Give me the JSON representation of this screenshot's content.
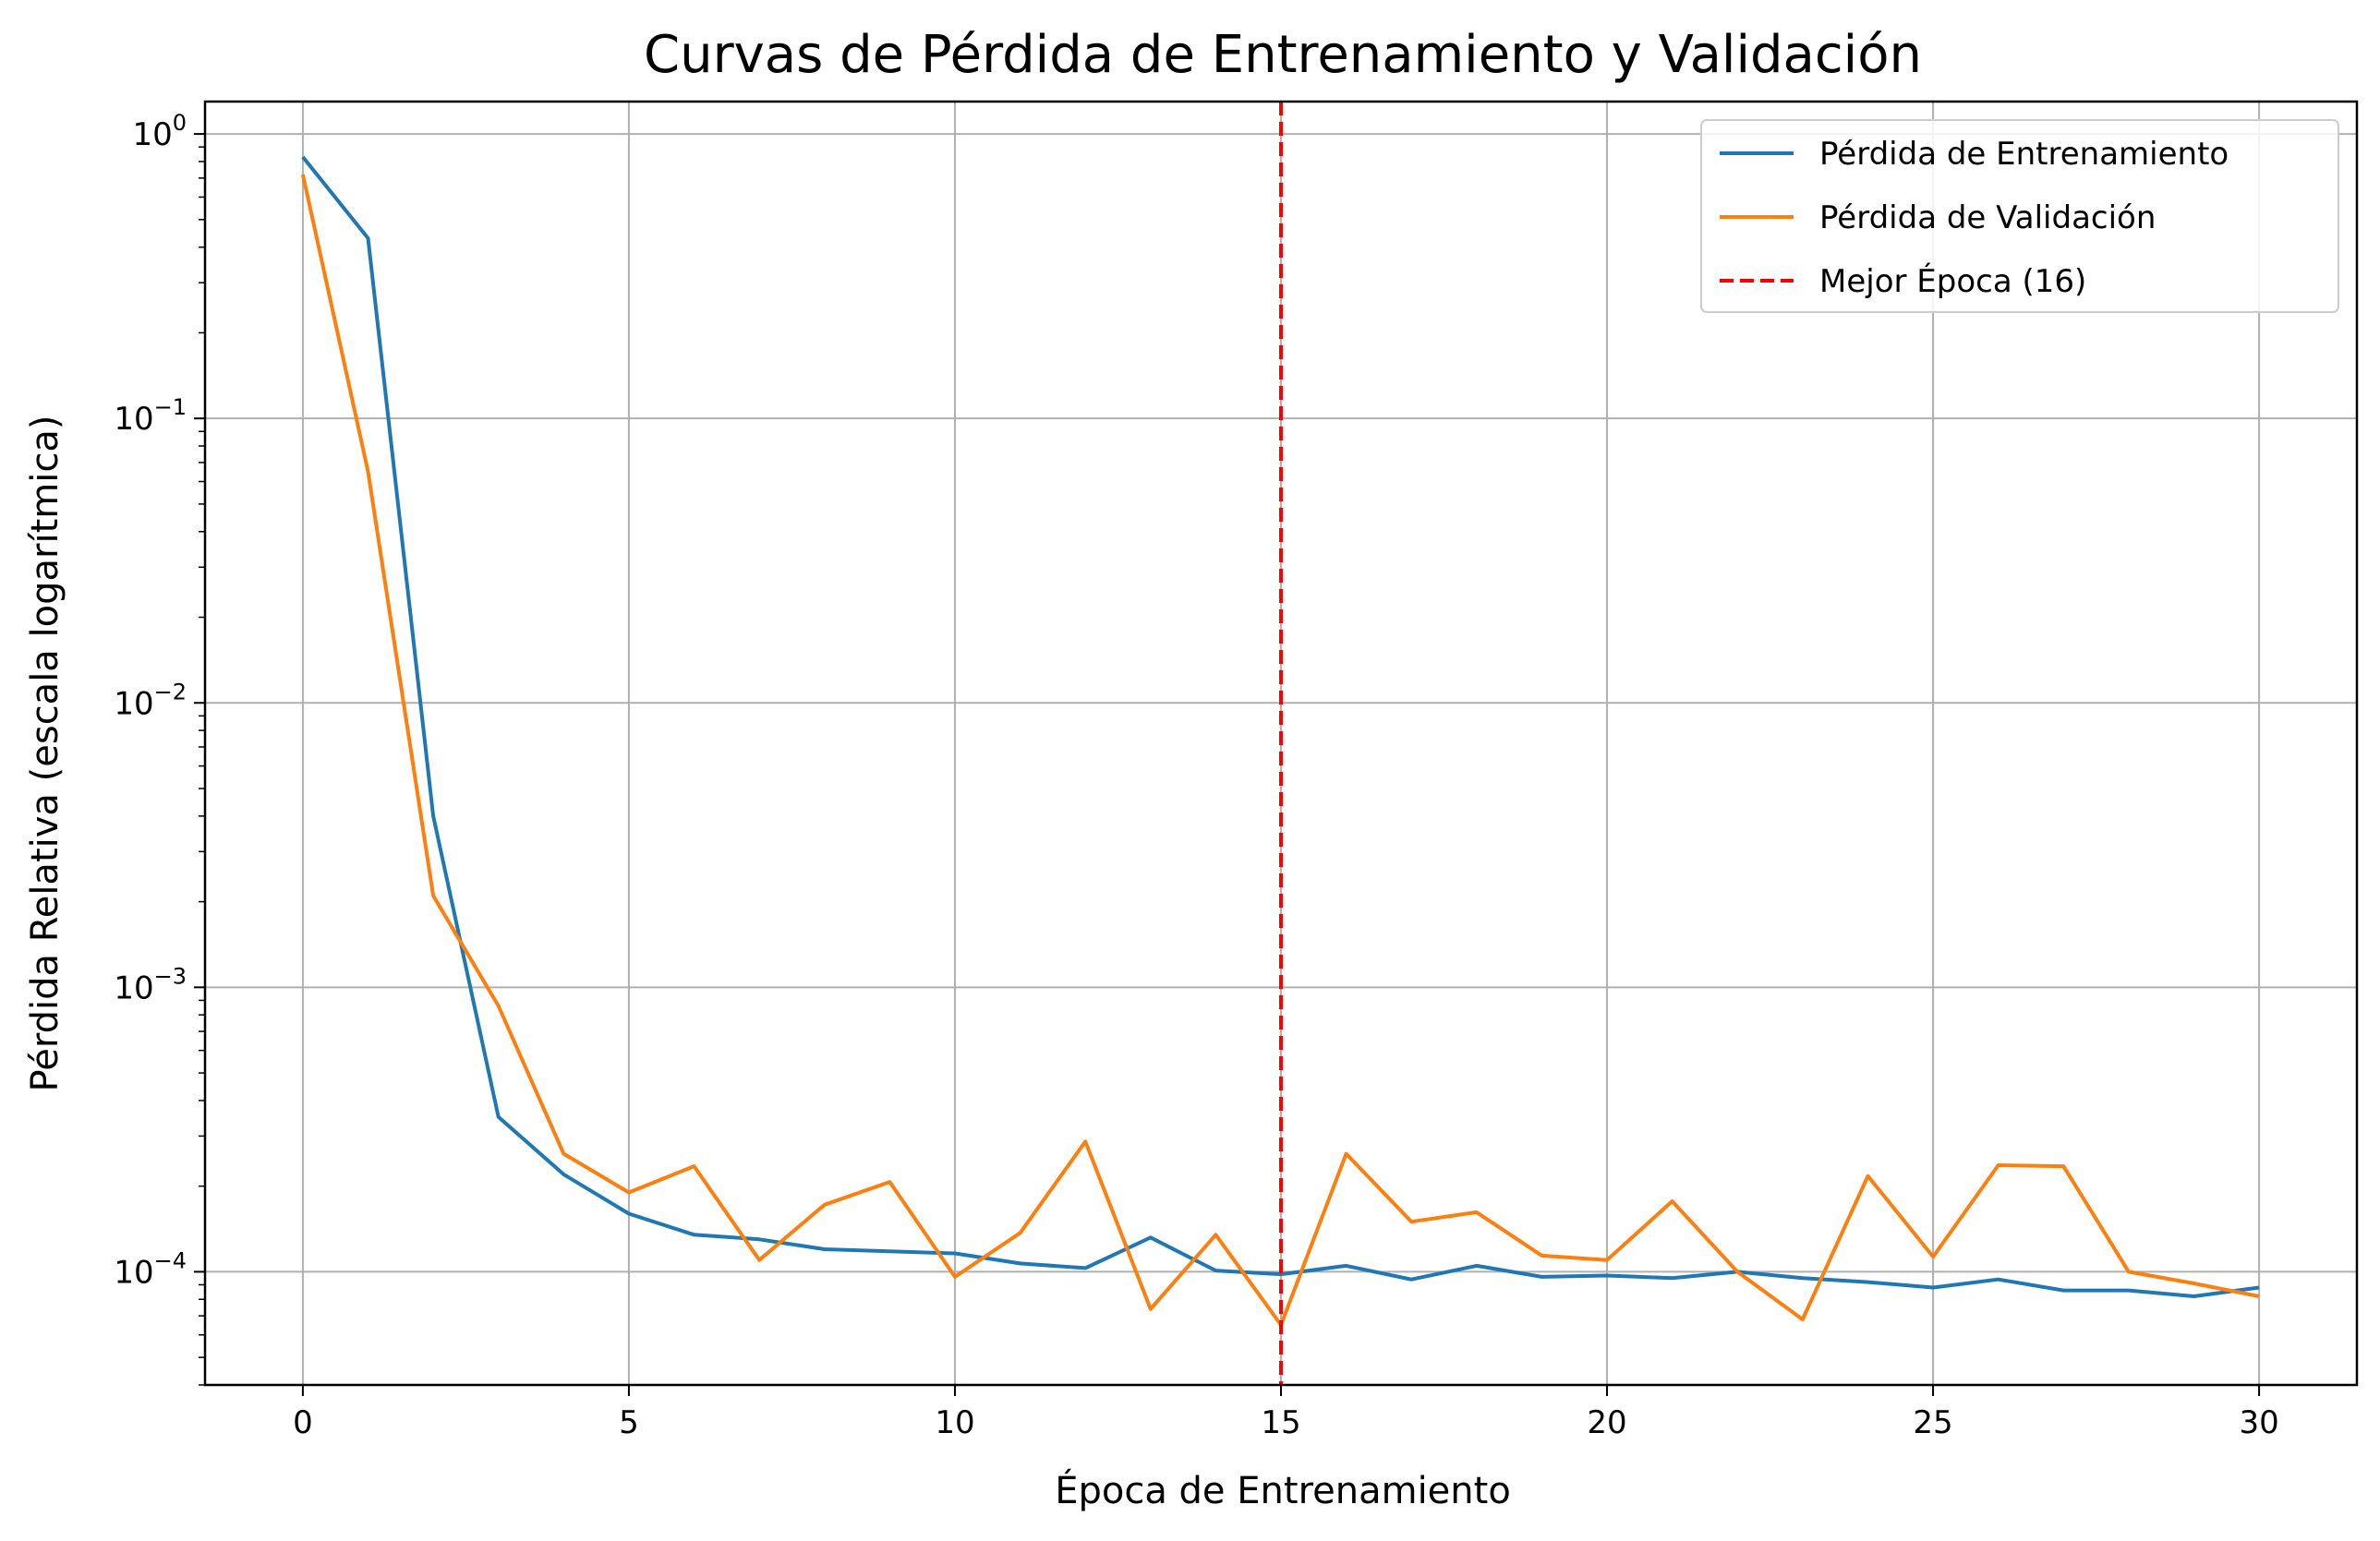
{
  "chart_data": {
    "type": "line",
    "title": "Curvas de Pérdida de Entrenamiento y Validación",
    "xlabel": "Época de Entrenamiento",
    "ylabel": "Pérdida Relativa (escala logarítmica)",
    "yscale": "log",
    "xlim": [
      -1.5,
      31.5
    ],
    "ylim": [
      4e-05,
      1.3
    ],
    "xticks": [
      0,
      5,
      10,
      15,
      20,
      25,
      30
    ],
    "yticks": [
      {
        "value": 1,
        "base": "10",
        "exp": "0"
      },
      {
        "value": 0.1,
        "base": "10",
        "exp": "−1"
      },
      {
        "value": 0.01,
        "base": "10",
        "exp": "−2"
      },
      {
        "value": 0.001,
        "base": "10",
        "exp": "−3"
      },
      {
        "value": 0.0001,
        "base": "10",
        "exp": "−4"
      }
    ],
    "grid": true,
    "legend_position": "top-right",
    "x": [
      0,
      1,
      2,
      3,
      4,
      5,
      6,
      7,
      8,
      9,
      10,
      11,
      12,
      13,
      14,
      15,
      16,
      17,
      18,
      19,
      20,
      21,
      22,
      23,
      24,
      25,
      26,
      27,
      28,
      29,
      30
    ],
    "series": [
      {
        "name": "Pérdida de Entrenamiento",
        "color": "#1f77b4",
        "values": [
          0.83,
          0.43,
          0.004,
          0.00035,
          0.00022,
          0.00016,
          0.000135,
          0.00013,
          0.00012,
          0.000118,
          0.000116,
          0.000107,
          0.000103,
          0.000132,
          0.000101,
          9.8e-05,
          0.000105,
          9.4e-05,
          0.000105,
          9.6e-05,
          9.7e-05,
          9.5e-05,
          0.0001,
          9.5e-05,
          9.2e-05,
          8.8e-05,
          9.4e-05,
          8.6e-05,
          8.6e-05,
          8.2e-05,
          8.8e-05
        ]
      },
      {
        "name": "Pérdida de Validación",
        "color": "#ff7f0e",
        "values": [
          0.72,
          0.065,
          0.0021,
          0.00086,
          0.00026,
          0.00019,
          0.000235,
          0.00011,
          0.000172,
          0.000207,
          9.6e-05,
          0.000137,
          0.000287,
          7.4e-05,
          0.000135,
          6.5e-05,
          0.00026,
          0.00015,
          0.000162,
          0.000114,
          0.00011,
          0.000177,
          0.0001,
          6.8e-05,
          0.000217,
          0.000113,
          0.000237,
          0.000235,
          0.0001,
          9.1e-05,
          8.2e-05
        ]
      }
    ],
    "vline": {
      "x": 15,
      "name": "Mejor Época (16)",
      "color": "#ff0000"
    }
  }
}
